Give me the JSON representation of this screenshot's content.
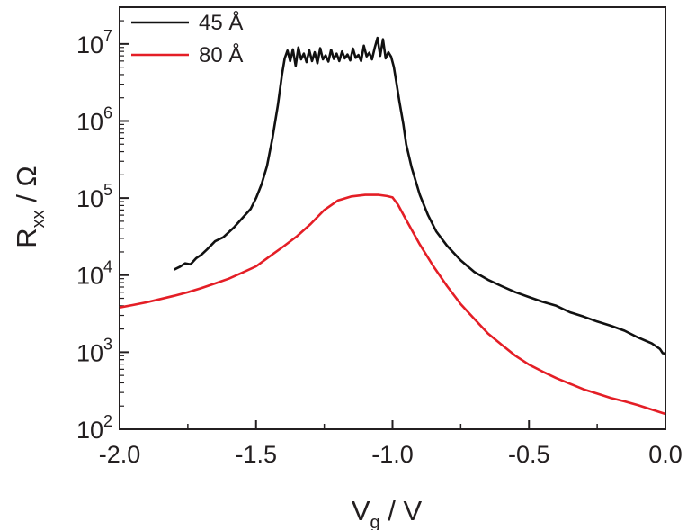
{
  "chart_data": {
    "type": "line",
    "xlabel_main": "V",
    "xlabel_sub": "g",
    "xlabel_unit": " / V",
    "ylabel_main": "R",
    "ylabel_sub": "xx",
    "ylabel_unit": " / Ω",
    "xlim": [
      -2.0,
      0.0
    ],
    "ylim": [
      100,
      30000000
    ],
    "yscale": "log",
    "x_ticks": [
      -2.0,
      -1.5,
      -1.0,
      -0.5,
      0.0
    ],
    "x_tick_labels": [
      "-2.0",
      "-1.5",
      "-1.0",
      "-0.5",
      "0.0"
    ],
    "y_ticks": [
      {
        "base": "10",
        "exp": "2",
        "value": 100
      },
      {
        "base": "10",
        "exp": "3",
        "value": 1000
      },
      {
        "base": "10",
        "exp": "4",
        "value": 10000
      },
      {
        "base": "10",
        "exp": "5",
        "value": 100000
      },
      {
        "base": "10",
        "exp": "6",
        "value": 1000000
      },
      {
        "base": "10",
        "exp": "7",
        "value": 10000000
      }
    ],
    "grid": false,
    "legend_position": "top-left",
    "series": [
      {
        "name": "45 Å",
        "color": "#111111",
        "points": [
          [
            -1.8,
            11800
          ],
          [
            -1.78,
            12800
          ],
          [
            -1.76,
            14200
          ],
          [
            -1.74,
            13800
          ],
          [
            -1.72,
            16500
          ],
          [
            -1.7,
            18500
          ],
          [
            -1.68,
            21500
          ],
          [
            -1.65,
            27500
          ],
          [
            -1.62,
            31000
          ],
          [
            -1.58,
            42000
          ],
          [
            -1.55,
            55000
          ],
          [
            -1.52,
            72000
          ],
          [
            -1.5,
            100000
          ],
          [
            -1.48,
            150000
          ],
          [
            -1.46,
            260000
          ],
          [
            -1.44,
            600000
          ],
          [
            -1.42,
            1600000
          ],
          [
            -1.405,
            4000000
          ],
          [
            -1.395,
            6500000
          ],
          [
            -1.385,
            8200000
          ],
          [
            -1.375,
            6000000
          ],
          [
            -1.365,
            8500000
          ],
          [
            -1.355,
            5200000
          ],
          [
            -1.345,
            9000000
          ],
          [
            -1.335,
            6300000
          ],
          [
            -1.325,
            7500000
          ],
          [
            -1.315,
            5800000
          ],
          [
            -1.305,
            8300000
          ],
          [
            -1.295,
            6000000
          ],
          [
            -1.285,
            7800000
          ],
          [
            -1.275,
            5600000
          ],
          [
            -1.265,
            8800000
          ],
          [
            -1.255,
            6300000
          ],
          [
            -1.245,
            7100000
          ],
          [
            -1.235,
            5900000
          ],
          [
            -1.225,
            8400000
          ],
          [
            -1.215,
            6400000
          ],
          [
            -1.205,
            7500000
          ],
          [
            -1.195,
            6000000
          ],
          [
            -1.185,
            8000000
          ],
          [
            -1.175,
            6500000
          ],
          [
            -1.165,
            7300000
          ],
          [
            -1.155,
            6100000
          ],
          [
            -1.145,
            8700000
          ],
          [
            -1.135,
            6600000
          ],
          [
            -1.125,
            7200000
          ],
          [
            -1.115,
            6000000
          ],
          [
            -1.105,
            9500000
          ],
          [
            -1.095,
            6900000
          ],
          [
            -1.085,
            7700000
          ],
          [
            -1.075,
            6300000
          ],
          [
            -1.065,
            9000000
          ],
          [
            -1.055,
            12000000
          ],
          [
            -1.045,
            7000000
          ],
          [
            -1.035,
            11500000
          ],
          [
            -1.025,
            6500000
          ],
          [
            -1.015,
            7800000
          ],
          [
            -1.005,
            6800000
          ],
          [
            -0.995,
            5000000
          ],
          [
            -0.985,
            3000000
          ],
          [
            -0.975,
            1800000
          ],
          [
            -0.96,
            900000
          ],
          [
            -0.95,
            500000
          ],
          [
            -0.93,
            250000
          ],
          [
            -0.9,
            110000
          ],
          [
            -0.87,
            60000
          ],
          [
            -0.84,
            37000
          ],
          [
            -0.8,
            24000
          ],
          [
            -0.75,
            15500
          ],
          [
            -0.7,
            11000
          ],
          [
            -0.65,
            8700
          ],
          [
            -0.6,
            7200
          ],
          [
            -0.55,
            6000
          ],
          [
            -0.5,
            5200
          ],
          [
            -0.45,
            4500
          ],
          [
            -0.4,
            4000
          ],
          [
            -0.35,
            3300
          ],
          [
            -0.3,
            2900
          ],
          [
            -0.25,
            2500
          ],
          [
            -0.2,
            2200
          ],
          [
            -0.15,
            1900
          ],
          [
            -0.1,
            1550
          ],
          [
            -0.05,
            1300
          ],
          [
            -0.02,
            1100
          ],
          [
            -0.01,
            970
          ],
          [
            0.0,
            960
          ]
        ]
      },
      {
        "name": "80 Å",
        "color": "#e41e26",
        "points": [
          [
            -2.0,
            3800
          ],
          [
            -1.95,
            4100
          ],
          [
            -1.9,
            4450
          ],
          [
            -1.85,
            4900
          ],
          [
            -1.8,
            5400
          ],
          [
            -1.75,
            6000
          ],
          [
            -1.7,
            6800
          ],
          [
            -1.65,
            7800
          ],
          [
            -1.6,
            9000
          ],
          [
            -1.55,
            10800
          ],
          [
            -1.5,
            13000
          ],
          [
            -1.45,
            17500
          ],
          [
            -1.4,
            23500
          ],
          [
            -1.35,
            32000
          ],
          [
            -1.3,
            46000
          ],
          [
            -1.25,
            70000
          ],
          [
            -1.2,
            93000
          ],
          [
            -1.15,
            105000
          ],
          [
            -1.1,
            110000
          ],
          [
            -1.05,
            110000
          ],
          [
            -1.02,
            106000
          ],
          [
            -1.0,
            102000
          ],
          [
            -0.98,
            82000
          ],
          [
            -0.95,
            52000
          ],
          [
            -0.9,
            25000
          ],
          [
            -0.85,
            13000
          ],
          [
            -0.8,
            7200
          ],
          [
            -0.75,
            4200
          ],
          [
            -0.7,
            2700
          ],
          [
            -0.65,
            1750
          ],
          [
            -0.6,
            1250
          ],
          [
            -0.55,
            900
          ],
          [
            -0.5,
            690
          ],
          [
            -0.45,
            560
          ],
          [
            -0.4,
            460
          ],
          [
            -0.35,
            390
          ],
          [
            -0.3,
            330
          ],
          [
            -0.25,
            290
          ],
          [
            -0.2,
            255
          ],
          [
            -0.15,
            230
          ],
          [
            -0.1,
            205
          ],
          [
            -0.05,
            180
          ],
          [
            0.0,
            158
          ]
        ]
      }
    ]
  }
}
